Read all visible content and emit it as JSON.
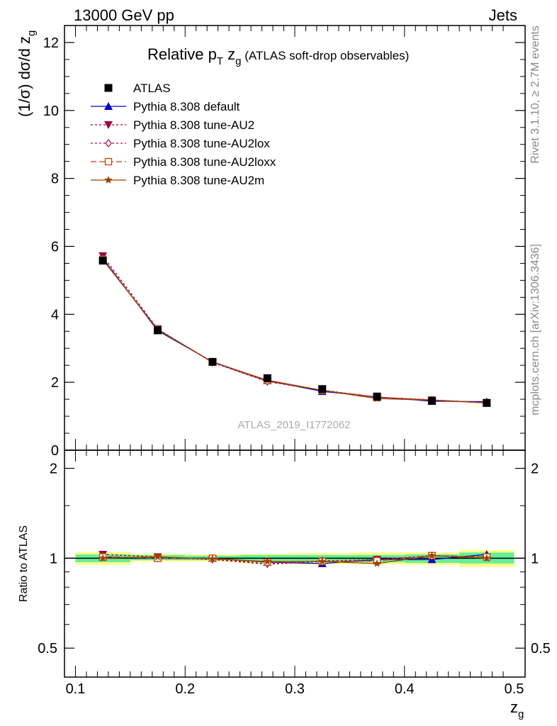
{
  "header": {
    "left": "13000 GeV pp",
    "right": "Jets"
  },
  "title": {
    "main": "Relative p",
    "main_sub": "T",
    "zvar": " z",
    "zvar_sub": "g",
    "suffix": " (ATLAS soft-drop observables)"
  },
  "watermark": "ATLAS_2019_I1772062",
  "side_text": {
    "rivet": "Rivet 3.1.10, ≥ 2.7M events",
    "mcplots": "mcplots.cern.ch [arXiv:1306.3436]"
  },
  "axes": {
    "ylabel_main": "(1/σ) dσ/d z",
    "ylabel_main_sub": "g",
    "ylabel_ratio": "Ratio to ATLAS",
    "xlabel": "z",
    "xlabel_sub": "g"
  },
  "legend": {
    "placement": "top-left",
    "entries": [
      {
        "label": "ATLAS",
        "marker": "square-filled",
        "color": "#000000",
        "line": "none"
      },
      {
        "label": "Pythia 8.308 default",
        "marker": "triangle-up-filled",
        "color": "#0000cc",
        "line": "solid"
      },
      {
        "label": "Pythia 8.308 tune-AU2",
        "marker": "triangle-down-filled",
        "color": "#990044",
        "line": "dotted"
      },
      {
        "label": "Pythia 8.308 tune-AU2lox",
        "marker": "diamond-open",
        "color": "#aa1155",
        "line": "dotted"
      },
      {
        "label": "Pythia 8.308 tune-AU2loxx",
        "marker": "square-open",
        "color": "#cc4400",
        "line": "dashed"
      },
      {
        "label": "Pythia 8.308 tune-AU2m",
        "marker": "star",
        "color": "#994400",
        "line": "solid"
      }
    ]
  },
  "chart_data": {
    "type": "line",
    "x": [
      0.125,
      0.175,
      0.225,
      0.275,
      0.325,
      0.375,
      0.425,
      0.475
    ],
    "xlim": [
      0.09,
      0.51
    ],
    "xticks": [
      "0.1",
      "0.2",
      "0.3",
      "0.4",
      "0.5"
    ],
    "main_panel": {
      "ylim": [
        0,
        12.5
      ],
      "yticks": [
        "0",
        "2",
        "4",
        "6",
        "8",
        "10",
        "12"
      ],
      "data": {
        "name": "ATLAS",
        "values": [
          5.58,
          3.53,
          2.6,
          2.12,
          1.8,
          1.58,
          1.45,
          1.39
        ]
      },
      "series": [
        {
          "name": "Pythia 8.308 default",
          "values": [
            5.65,
            3.52,
            2.6,
            2.05,
            1.73,
            1.57,
            1.44,
            1.43
          ]
        },
        {
          "name": "Pythia 8.308 tune-AU2",
          "values": [
            5.72,
            3.57,
            2.58,
            2.02,
            1.76,
            1.56,
            1.48,
            1.4
          ]
        },
        {
          "name": "Pythia 8.308 tune-AU2lox",
          "values": [
            5.63,
            3.55,
            2.59,
            2.03,
            1.77,
            1.56,
            1.48,
            1.4
          ]
        },
        {
          "name": "Pythia 8.308 tune-AU2loxx",
          "values": [
            5.62,
            3.55,
            2.6,
            2.05,
            1.76,
            1.55,
            1.47,
            1.4
          ]
        },
        {
          "name": "Pythia 8.308 tune-AU2m",
          "values": [
            5.6,
            3.56,
            2.59,
            2.06,
            1.76,
            1.52,
            1.47,
            1.39
          ]
        }
      ]
    },
    "ratio_panel": {
      "ylim": [
        0.4,
        2.3
      ],
      "scale": "log",
      "yticks": [
        "0.5",
        "1",
        "2"
      ],
      "bands": {
        "edges": [
          0.1,
          0.15,
          0.2,
          0.25,
          0.3,
          0.35,
          0.4,
          0.45,
          0.5
        ],
        "inner": [
          [
            0.97,
            1.03
          ],
          [
            0.985,
            1.025
          ],
          [
            0.985,
            1.02
          ],
          [
            0.975,
            1.025
          ],
          [
            0.97,
            1.025
          ],
          [
            0.97,
            1.025
          ],
          [
            0.965,
            1.03
          ],
          [
            0.96,
            1.045
          ]
        ],
        "outer": [
          [
            0.95,
            1.05
          ],
          [
            0.975,
            1.035
          ],
          [
            0.975,
            1.03
          ],
          [
            0.96,
            1.035
          ],
          [
            0.955,
            1.04
          ],
          [
            0.955,
            1.045
          ],
          [
            0.95,
            1.045
          ],
          [
            0.935,
            1.065
          ]
        ],
        "inner_color": "#66ee99",
        "outer_color": "#ffff88"
      },
      "series": [
        {
          "name": "Pythia 8.308 default",
          "values": [
            1.01,
            1.0,
            1.0,
            0.97,
            0.96,
            0.99,
            0.99,
            1.03
          ]
        },
        {
          "name": "Pythia 8.308 tune-AU2",
          "values": [
            1.03,
            1.01,
            0.99,
            0.955,
            0.975,
            0.99,
            1.02,
            1.01
          ]
        },
        {
          "name": "Pythia 8.308 tune-AU2lox",
          "values": [
            1.01,
            1.0,
            0.995,
            0.96,
            0.98,
            0.99,
            1.02,
            1.01
          ]
        },
        {
          "name": "Pythia 8.308 tune-AU2loxx",
          "values": [
            1.01,
            1.0,
            1.0,
            0.97,
            0.975,
            0.98,
            1.02,
            1.01
          ]
        },
        {
          "name": "Pythia 8.308 tune-AU2m",
          "values": [
            1.0,
            1.01,
            0.995,
            0.975,
            0.975,
            0.96,
            1.02,
            1.0
          ]
        }
      ]
    }
  }
}
